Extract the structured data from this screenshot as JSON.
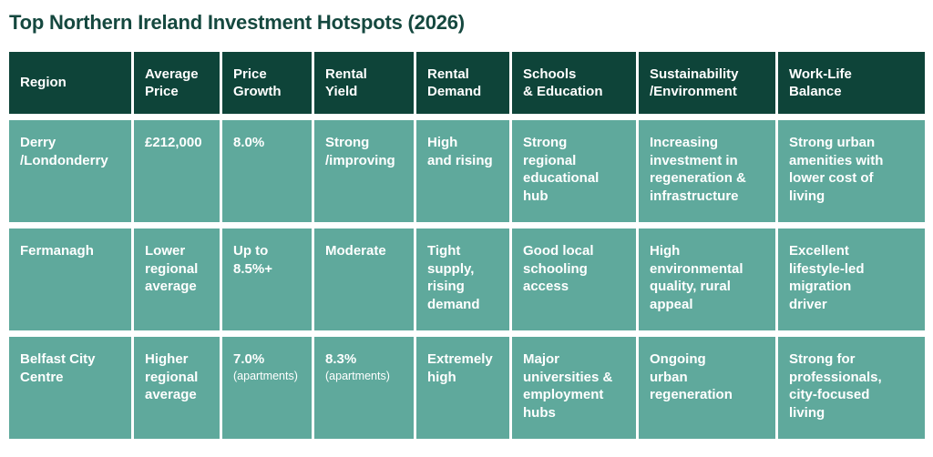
{
  "title": "Top Northern Ireland Investment Hotspots (2026)",
  "colors": {
    "header_bg": "#0E4439",
    "row_bg": "#5FA99C",
    "title_text": "#15483F",
    "cell_text": "#FFFFFF",
    "page_bg": "#FFFFFF"
  },
  "table": {
    "columns": [
      "Region",
      "Average\nPrice",
      "Price\nGrowth",
      "Rental\nYield",
      "Rental\nDemand",
      "Schools\n& Education",
      "Sustainability\n/Environment",
      "Work-Life\nBalance"
    ],
    "rows": [
      {
        "cells": [
          {
            "text": "Derry\n/Londonderry"
          },
          {
            "text": "£212,000"
          },
          {
            "text": "8.0%"
          },
          {
            "text": "Strong\n/improving"
          },
          {
            "text": "High\nand rising"
          },
          {
            "text": "Strong\nregional\neducational\nhub"
          },
          {
            "text": "Increasing\ninvestment in\nregeneration &\ninfrastructure"
          },
          {
            "text": "Strong urban\namenities with\nlower cost of\nliving"
          }
        ]
      },
      {
        "cells": [
          {
            "text": "Fermanagh"
          },
          {
            "text": "Lower\nregional\naverage"
          },
          {
            "text": "Up to\n8.5%+"
          },
          {
            "text": "Moderate"
          },
          {
            "text": "Tight\nsupply,\nrising\ndemand"
          },
          {
            "text": "Good local\nschooling\naccess"
          },
          {
            "text": "High\nenvironmental\nquality, rural\nappeal"
          },
          {
            "text": "Excellent\nlifestyle-led\nmigration\ndriver"
          }
        ]
      },
      {
        "cells": [
          {
            "text": "Belfast City\nCentre"
          },
          {
            "text": "Higher\nregional\naverage"
          },
          {
            "text": "7.0%",
            "note": "(apartments)"
          },
          {
            "text": "8.3%",
            "note": "(apartments)"
          },
          {
            "text": "Extremely\nhigh"
          },
          {
            "text": "Major\nuniversities &\nemployment\nhubs"
          },
          {
            "text": "Ongoing\nurban\nregeneration"
          },
          {
            "text": "Strong for\nprofessionals,\ncity-focused\nliving"
          }
        ]
      }
    ]
  },
  "chart_data": {
    "type": "table",
    "title": "Top Northern Ireland Investment Hotspots (2026)",
    "columns": [
      "Region",
      "Average Price",
      "Price Growth",
      "Rental Yield",
      "Rental Demand",
      "Schools & Education",
      "Sustainability /Environment",
      "Work-Life Balance"
    ],
    "rows": [
      [
        "Derry /Londonderry",
        "£212,000",
        "8.0%",
        "Strong /improving",
        "High and rising",
        "Strong regional educational hub",
        "Increasing investment in regeneration & infrastructure",
        "Strong urban amenities with lower cost of living"
      ],
      [
        "Fermanagh",
        "Lower regional average",
        "Up to 8.5%+",
        "Moderate",
        "Tight supply, rising demand",
        "Good local schooling access",
        "High environmental quality, rural appeal",
        "Excellent lifestyle-led migration driver"
      ],
      [
        "Belfast City Centre",
        "Higher regional average",
        "7.0% (apartments)",
        "8.3% (apartments)",
        "Extremely high",
        "Major universities & employment hubs",
        "Ongoing urban regeneration",
        "Strong for professionals, city-focused living"
      ]
    ]
  }
}
